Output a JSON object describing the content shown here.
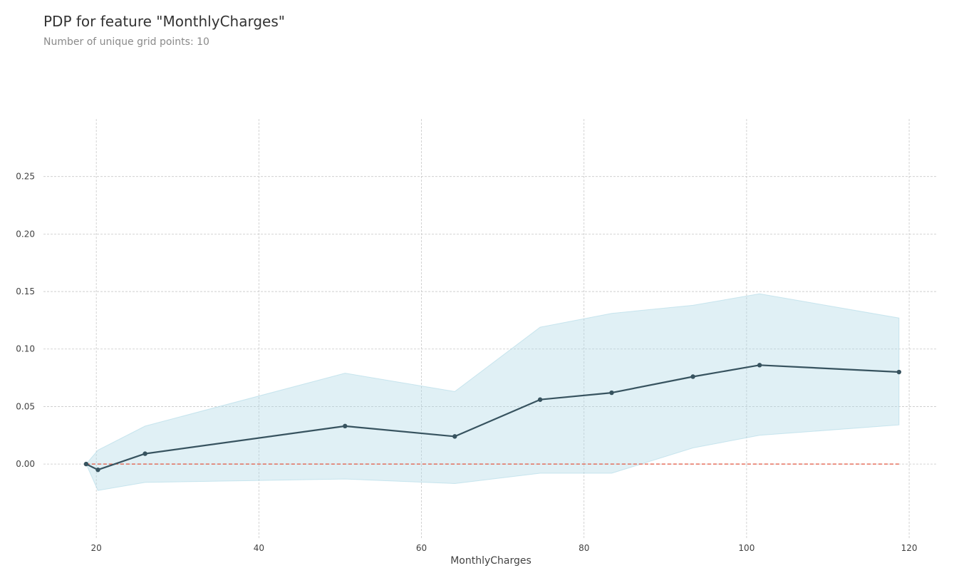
{
  "chart_data": {
    "type": "line",
    "title": "PDP for feature \"MonthlyCharges\"",
    "subtitle": "Number of unique grid points: 10",
    "xlabel": "MonthlyCharges",
    "ylabel": "",
    "xlim": [
      13.5,
      123.5
    ],
    "ylim": [
      -0.065,
      0.3
    ],
    "xticks": [
      20,
      40,
      60,
      80,
      100,
      120
    ],
    "xtick_labels": [
      "20",
      "40",
      "60",
      "80",
      "100",
      "120"
    ],
    "yticks": [
      0.0,
      0.05,
      0.1,
      0.15,
      0.2,
      0.25
    ],
    "ytick_labels": [
      "0.00",
      "0.05",
      "0.10",
      "0.15",
      "0.20",
      "0.25"
    ],
    "grid": true,
    "x": [
      18.75,
      20.2,
      26.0,
      50.6,
      64.1,
      74.6,
      83.4,
      93.4,
      101.6,
      118.75
    ],
    "series": [
      {
        "values": [
          0.0,
          -0.005,
          0.009,
          0.033,
          0.024,
          0.056,
          0.062,
          0.076,
          0.086,
          0.08
        ],
        "upper": [
          0.0,
          0.012,
          0.033,
          0.079,
          0.063,
          0.119,
          0.131,
          0.138,
          0.148,
          0.127
        ],
        "lower": [
          0.0,
          -0.023,
          -0.016,
          -0.013,
          -0.017,
          -0.008,
          -0.008,
          0.014,
          0.025,
          0.034
        ]
      }
    ],
    "reference_line": {
      "y": 0.0
    },
    "colors": {
      "line": "#37535f",
      "band": "#add8e6",
      "reference": "#e2553e",
      "grid": "#c8c8c8",
      "tick_text": "#424242"
    }
  }
}
